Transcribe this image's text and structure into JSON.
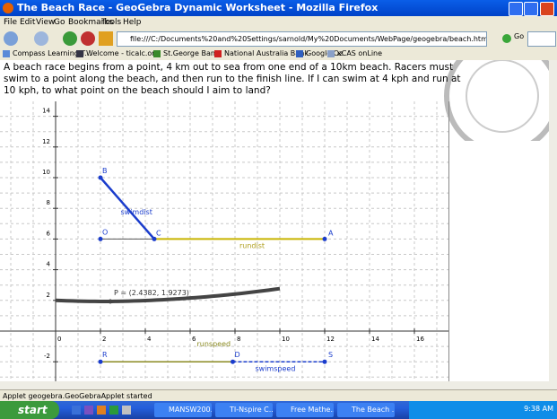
{
  "window": {
    "title": "The Beach Race - GeoGebra Dynamic Worksheet - Mozilla Firefox"
  },
  "menu": [
    "File",
    "Edit",
    "View",
    "Go",
    "Bookmarks",
    "Tools",
    "Help"
  ],
  "toolbar": {
    "address": "file:///C:/Documents%20and%20Settings/sarnold/My%20Documents/WebPage/geogebra/beach.html",
    "go": "Go"
  },
  "bookmarks": [
    "Compass Learning T...",
    "Welcome - ticalc.org",
    "St.George Bank",
    "National Australia Bank",
    "Google Oz",
    "xCAS onLine"
  ],
  "content": {
    "question": "A beach race begins from a point, 4 km out to sea from one end of a 10km beach. Racers must swim to a point along the beach, and then run to the finish line. If I can swim at 4 kph and run at 10 kph, to what point on the beach should I aim to land?"
  },
  "graph": {
    "xticks": [
      0,
      2,
      4,
      6,
      8,
      10,
      12,
      14,
      16
    ],
    "yticks": [
      -2,
      2,
      4,
      6,
      8,
      10,
      12,
      14
    ],
    "points": [
      "B",
      "O",
      "C",
      "A",
      "R",
      "D",
      "S"
    ],
    "labels": {
      "swimdist": "swimdist",
      "rundist": "rundist",
      "runspeed": "runspeed",
      "swimspeed": "swimspeed",
      "p": "P = (2.4382, 1.9273)"
    }
  },
  "status": "Applet geogebra.GeoGebraApplet started",
  "taskbar": {
    "start": "start",
    "tasks": [
      "MANSW200...",
      "TI-Nspire C...",
      "Free Mathe...",
      "The Beach ..."
    ],
    "clock": "9:38 AM"
  }
}
